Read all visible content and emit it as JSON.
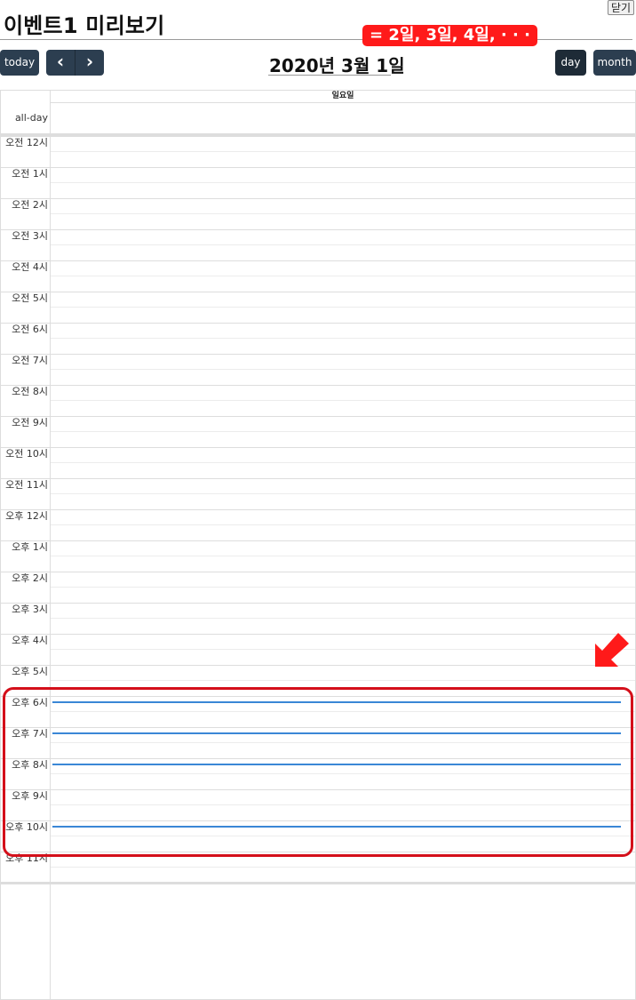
{
  "page": {
    "title": "이벤트1 미리보기",
    "close_label": "닫기"
  },
  "annotation": {
    "badge_text": "= 2일, 3일, 4일, · · ·",
    "arrow_icon": "red-arrow-icon",
    "color": "#ff1a1a"
  },
  "toolbar": {
    "today_label": "today",
    "prev_icon": "chevron-left-icon",
    "next_icon": "chevron-right-icon",
    "prev_glyph": "‹",
    "next_glyph": "›",
    "date_title": "2020년 3월 1일",
    "day_label": "day",
    "month_label": "month"
  },
  "calendar": {
    "day_header": "일요일",
    "allday_label": "all-day",
    "hours": [
      "오전 12시",
      "오전 1시",
      "오전 2시",
      "오전 3시",
      "오전 4시",
      "오전 5시",
      "오전 6시",
      "오전 7시",
      "오전 8시",
      "오전 9시",
      "오전 10시",
      "오전 11시",
      "오후 12시",
      "오후 1시",
      "오후 2시",
      "오후 3시",
      "오후 4시",
      "오후 5시",
      "오후 6시",
      "오후 7시",
      "오후 8시",
      "오후 9시",
      "오후 10시",
      "오후 11시"
    ],
    "events": [
      {
        "hour": "오후 6시",
        "color": "#3a87d6"
      },
      {
        "hour": "오후 7시",
        "color": "#3a87d6"
      },
      {
        "hour": "오후 8시",
        "color": "#3a87d6"
      },
      {
        "hour": "오후 10시",
        "color": "#3a87d6"
      }
    ]
  },
  "colors": {
    "button_bg": "#2c3e50",
    "button_active_bg": "#1e2b37",
    "event_color": "#3a87d6",
    "highlight_border": "#d40f1a"
  }
}
